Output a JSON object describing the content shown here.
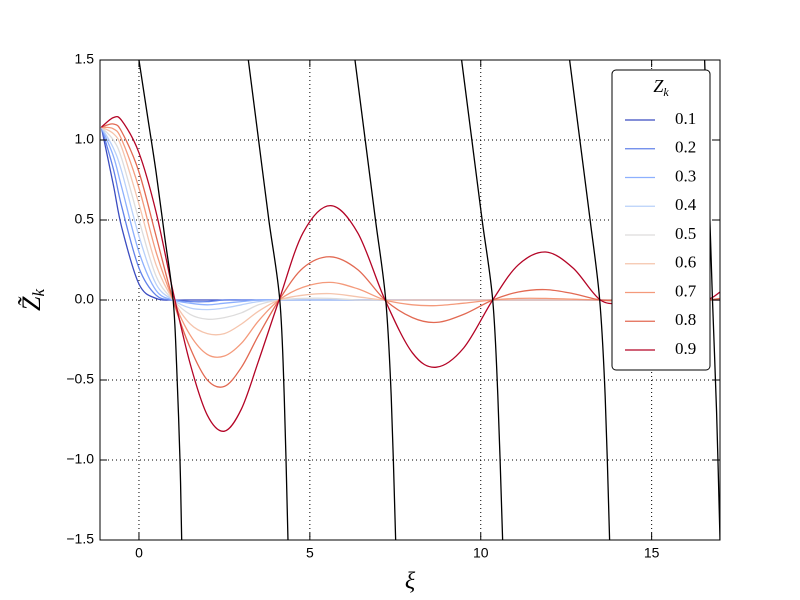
{
  "chart_data": {
    "type": "line",
    "y_label": {
      "base": "Z̃",
      "sub": "k"
    },
    "x_label": "ξ",
    "legend_title": {
      "base": "Z",
      "sub": "k"
    },
    "legend": "upper right",
    "grid": true,
    "xlim": [
      -1.14,
      17
    ],
    "ylim": [
      -1.5,
      1.5
    ],
    "xticks": [
      0,
      5,
      10,
      15
    ],
    "yticks": [
      {
        "value": -1.5,
        "label": "−1.5"
      },
      {
        "value": -1.0,
        "label": "−1.0"
      },
      {
        "value": -0.5,
        "label": "−0.5"
      },
      {
        "value": 0,
        "label": "0.0"
      },
      0.5,
      {
        "value": 1.0,
        "label": "1.0"
      },
      1.5
    ],
    "x": [
      -1.1,
      -0.75,
      -0.5,
      0,
      0.5,
      1.0,
      1.5,
      2.0,
      2.5,
      3.0,
      3.5,
      4.1,
      4.8,
      5.6,
      6.4,
      7.2,
      8.0,
      8.7,
      9.5,
      10.35,
      11.1,
      11.9,
      12.7,
      13.5,
      14.2,
      15.0,
      15.8,
      16.6,
      17.0
    ],
    "series": [
      {
        "name": "0.1",
        "color": "#3b4cc0",
        "values": [
          1.08,
          0.72,
          0.45,
          0.1,
          0.01,
          0,
          0,
          0,
          0,
          0,
          0,
          0,
          0,
          0,
          0,
          0,
          0,
          0,
          0,
          0,
          0,
          0,
          0,
          0,
          0,
          0,
          0,
          0,
          0
        ]
      },
      {
        "name": "0.2",
        "color": "#6282ea",
        "values": [
          1.08,
          0.82,
          0.58,
          0.2,
          0.03,
          0,
          -0.01,
          -0.01,
          0,
          0,
          0,
          0,
          0,
          0,
          0,
          0,
          0,
          0,
          0,
          0,
          0,
          0,
          0,
          0,
          0,
          0,
          0,
          0,
          0
        ]
      },
      {
        "name": "0.3",
        "color": "#8db0fe",
        "values": [
          1.08,
          0.9,
          0.7,
          0.3,
          0.06,
          0,
          -0.02,
          -0.03,
          -0.02,
          -0.01,
          0,
          0,
          0,
          0,
          0,
          0,
          0,
          0,
          0,
          0,
          0,
          0,
          0,
          0,
          0,
          0,
          0,
          0,
          0
        ]
      },
      {
        "name": "0.4",
        "color": "#b8d0f9",
        "values": [
          1.08,
          0.95,
          0.8,
          0.4,
          0.1,
          0,
          -0.05,
          -0.06,
          -0.05,
          -0.03,
          -0.01,
          0,
          0,
          0,
          0,
          0,
          0,
          0,
          0,
          0,
          0,
          0,
          0,
          0,
          0,
          0,
          0,
          0,
          0
        ]
      },
      {
        "name": "0.5",
        "color": "#dddcdc",
        "values": [
          1.08,
          1.0,
          0.88,
          0.5,
          0.15,
          0,
          -0.09,
          -0.12,
          -0.11,
          -0.08,
          -0.03,
          0,
          0.01,
          0.01,
          0,
          0,
          0,
          0,
          0,
          0,
          0,
          0,
          0,
          0,
          0,
          0,
          0,
          0,
          0
        ]
      },
      {
        "name": "0.6",
        "color": "#f5c4ac",
        "values": [
          1.08,
          1.04,
          0.95,
          0.6,
          0.22,
          0,
          -0.15,
          -0.21,
          -0.21,
          -0.15,
          -0.07,
          0,
          0.03,
          0.04,
          0.02,
          0,
          0,
          0,
          0,
          0,
          0,
          0,
          0,
          0,
          0,
          0,
          0,
          0,
          0
        ]
      },
      {
        "name": "0.7",
        "color": "#f49a7b",
        "values": [
          1.08,
          1.07,
          1.0,
          0.7,
          0.3,
          0,
          -0.22,
          -0.34,
          -0.35,
          -0.27,
          -0.13,
          0,
          0.08,
          0.11,
          0.07,
          0,
          -0.03,
          -0.035,
          -0.02,
          0,
          0.01,
          0.01,
          0.005,
          0,
          0,
          0,
          0,
          0,
          0
        ]
      },
      {
        "name": "0.8",
        "color": "#e26952",
        "values": [
          1.08,
          1.1,
          1.05,
          0.8,
          0.4,
          0,
          -0.3,
          -0.5,
          -0.54,
          -0.42,
          -0.22,
          0,
          0.2,
          0.27,
          0.19,
          0,
          -0.11,
          -0.14,
          -0.09,
          0,
          0.05,
          0.065,
          0.04,
          0,
          -0.005,
          0,
          0,
          0,
          0.01
        ]
      },
      {
        "name": "0.9",
        "color": "#b40426",
        "values": [
          1.08,
          1.14,
          1.12,
          0.92,
          0.55,
          0.05,
          -0.4,
          -0.72,
          -0.82,
          -0.68,
          -0.38,
          0,
          0.42,
          0.59,
          0.42,
          0,
          -0.33,
          -0.42,
          -0.3,
          0,
          0.22,
          0.3,
          0.2,
          0,
          -0.02,
          -0.02,
          -0.01,
          0,
          0.05
        ]
      },
      {
        "color": "#000000",
        "x": [
          0,
          0.25,
          0.5,
          0.75,
          1.0,
          1.1,
          1.2,
          1.25
        ],
        "values": [
          1.5,
          1.15,
          0.8,
          0.4,
          0,
          -0.4,
          -1.0,
          -1.5
        ]
      },
      {
        "color": "#000000",
        "x": [
          3.2,
          3.5,
          3.8,
          4.12,
          4.25,
          4.36
        ],
        "values": [
          1.5,
          1.0,
          0.5,
          0,
          -0.6,
          -1.5
        ]
      },
      {
        "color": "#000000",
        "x": [
          6.32,
          6.62,
          6.92,
          7.22,
          7.38,
          7.51
        ],
        "values": [
          1.5,
          1.0,
          0.5,
          0,
          -0.6,
          -1.5
        ]
      },
      {
        "color": "#000000",
        "x": [
          9.44,
          9.74,
          10.04,
          10.35,
          10.5,
          10.64
        ],
        "values": [
          1.5,
          1.0,
          0.5,
          0,
          -0.6,
          -1.5
        ]
      },
      {
        "color": "#000000",
        "x": [
          12.6,
          12.9,
          13.2,
          13.48,
          13.64,
          13.77
        ],
        "values": [
          1.5,
          1.0,
          0.5,
          0,
          -0.6,
          -1.5
        ]
      },
      {
        "color": "#000000",
        "x": [
          16.55,
          16.66,
          16.78,
          16.9,
          17.0
        ],
        "values": [
          1.5,
          0.8,
          0,
          -0.7,
          -1.5
        ]
      }
    ]
  }
}
